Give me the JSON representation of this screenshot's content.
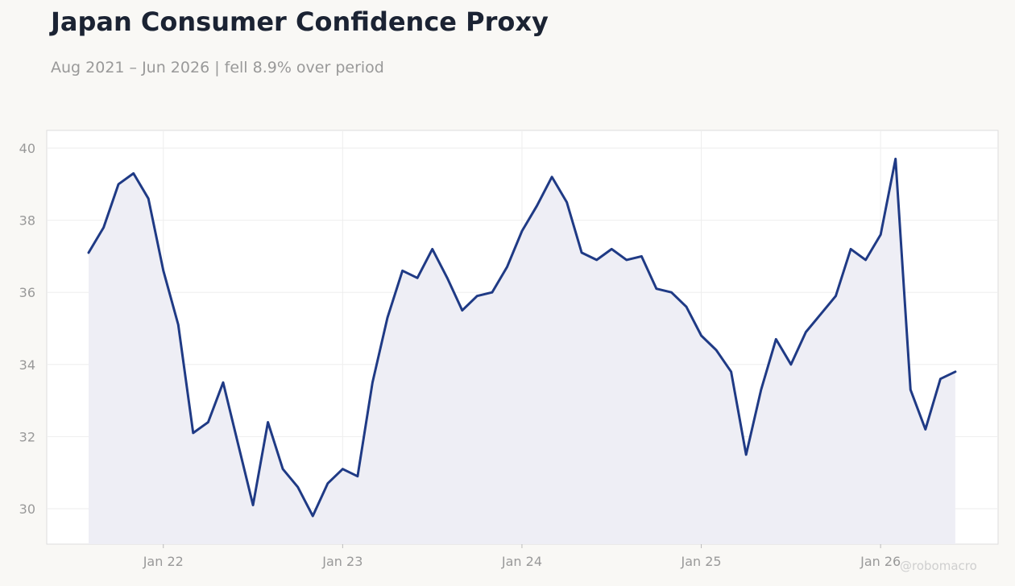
{
  "title": "Japan Consumer Confidence Proxy",
  "subtitle": "Aug 2021 – Jun 2026 | fell 8.9% over period",
  "watermark": "@robomacro",
  "colors": {
    "line": "#1f3a85",
    "fill": "#eeeef5",
    "grid": "#eeeeee",
    "axis_text": "#999999",
    "frame": "#dddddd"
  },
  "chart_data": {
    "type": "line",
    "x_start": "2021-08",
    "x_frequency": "monthly",
    "ylim": [
      29,
      40.5
    ],
    "yticks": [
      30,
      32,
      34,
      36,
      38,
      40
    ],
    "xticks": [
      {
        "label": "Jan 22",
        "date": "2022-01"
      },
      {
        "label": "Jan 23",
        "date": "2023-01"
      },
      {
        "label": "Jan 24",
        "date": "2024-01"
      },
      {
        "label": "Jan 25",
        "date": "2025-01"
      },
      {
        "label": "Jan 26",
        "date": "2026-01"
      }
    ],
    "grid": true,
    "legend": "none",
    "series": [
      {
        "x": [
          "2021-08",
          "2021-09",
          "2021-10",
          "2021-11",
          "2021-12",
          "2022-01",
          "2022-02",
          "2022-03",
          "2022-04",
          "2022-05",
          "2022-06",
          "2022-07",
          "2022-08",
          "2022-09",
          "2022-10",
          "2022-11",
          "2022-12",
          "2023-01",
          "2023-02",
          "2023-03",
          "2023-04",
          "2023-05",
          "2023-06",
          "2023-07",
          "2023-08",
          "2023-09",
          "2023-10",
          "2023-11",
          "2023-12",
          "2024-01",
          "2024-02",
          "2024-03",
          "2024-04",
          "2024-05",
          "2024-06",
          "2024-07",
          "2024-08",
          "2024-09",
          "2024-10",
          "2024-11",
          "2024-12",
          "2025-01",
          "2025-02",
          "2025-03",
          "2025-04",
          "2025-05",
          "2025-06",
          "2025-07",
          "2025-08",
          "2025-09",
          "2025-10",
          "2025-11",
          "2025-12",
          "2026-01",
          "2026-02",
          "2026-03",
          "2026-04",
          "2026-05",
          "2026-06"
        ],
        "values": [
          37.1,
          37.8,
          39.0,
          39.3,
          38.6,
          36.6,
          35.1,
          32.1,
          32.4,
          33.5,
          31.8,
          30.1,
          32.4,
          31.1,
          30.6,
          29.8,
          30.7,
          31.1,
          30.9,
          33.5,
          35.3,
          36.6,
          36.4,
          37.2,
          36.4,
          35.5,
          35.9,
          36.0,
          36.7,
          37.7,
          38.4,
          39.2,
          38.5,
          37.1,
          36.9,
          37.2,
          36.9,
          37.0,
          36.1,
          36.0,
          35.6,
          34.8,
          34.4,
          33.8,
          31.5,
          33.3,
          34.7,
          34.0,
          34.9,
          35.4,
          35.9,
          37.2,
          36.9,
          37.6,
          39.7,
          33.3,
          32.2,
          33.6,
          33.8
        ]
      }
    ]
  }
}
